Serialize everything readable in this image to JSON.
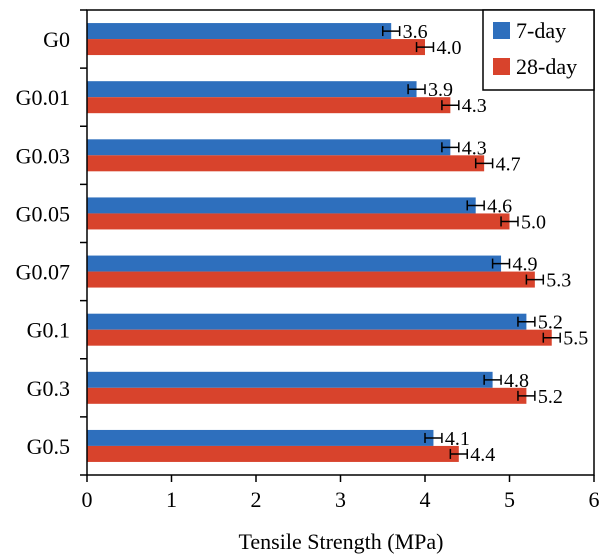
{
  "chart_data": {
    "type": "bar",
    "orientation": "horizontal",
    "title": "",
    "xlabel": "Tensile Strength (MPa)",
    "ylabel": "",
    "xlim": [
      0,
      6
    ],
    "xticks": [
      0,
      1,
      2,
      3,
      4,
      5,
      6
    ],
    "categories": [
      "G0",
      "G0.01",
      "G0.03",
      "G0.05",
      "G0.07",
      "G0.1",
      "G0.3",
      "G0.5"
    ],
    "series": [
      {
        "name": "7-day",
        "color": "#2e6fbd",
        "values": [
          3.6,
          3.9,
          4.3,
          4.6,
          4.9,
          5.2,
          4.8,
          4.1
        ],
        "labels": [
          "3.6",
          "3.9",
          "4.3",
          "4.6",
          "4.9",
          "5.2",
          "4.8",
          "4.1"
        ],
        "errors": [
          0.1,
          0.1,
          0.1,
          0.1,
          0.1,
          0.1,
          0.1,
          0.1
        ]
      },
      {
        "name": "28-day",
        "color": "#d8432c",
        "values": [
          4.0,
          4.3,
          4.7,
          5.0,
          5.3,
          5.5,
          5.2,
          4.4
        ],
        "labels": [
          "4.0",
          "4.3",
          "4.7",
          "5.0",
          "5.3",
          "5.5",
          "5.2",
          "4.4"
        ],
        "errors": [
          0.1,
          0.1,
          0.1,
          0.1,
          0.1,
          0.1,
          0.1,
          0.1
        ]
      }
    ],
    "grid": false,
    "legend_position": "top-right"
  }
}
